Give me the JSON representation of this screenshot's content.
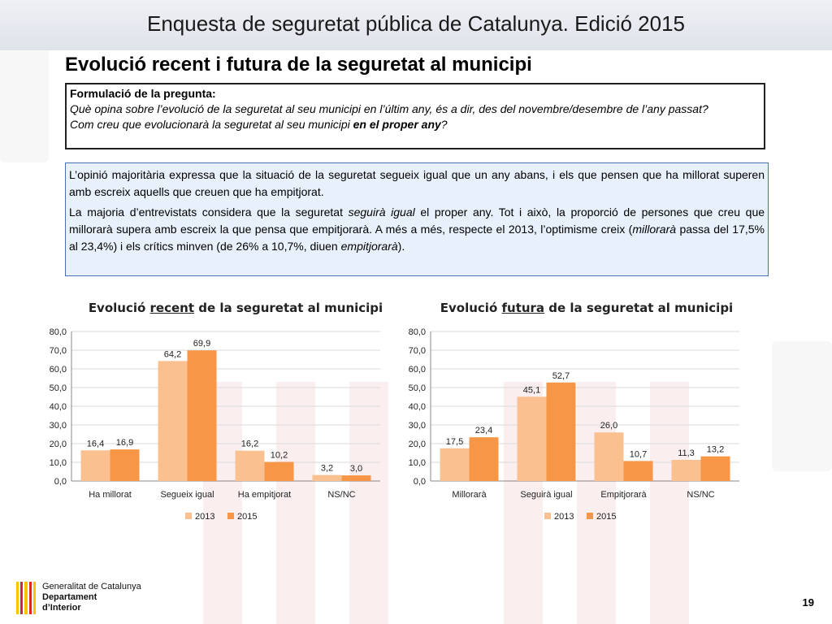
{
  "header": {
    "title": "Enquesta de seguretat pública de Catalunya. Edició 2015"
  },
  "slide": {
    "title": "Evolució recent i futura de la seguretat al municipi"
  },
  "question": {
    "label": "Formulació de la pregunta:",
    "line1": "Què opina sobre l’evolució de la seguretat al seu municipi en l’últim any, és a dir, des del novembre/desembre de l’any passat?",
    "line2_pre": "Com creu que evolucionarà la seguretat al seu municipi ",
    "line2_bold": "en el proper any",
    "line2_post": "?"
  },
  "summary": {
    "p1": "L’opinió majoritària expressa que la situació de la seguretat segueix igual que un any abans, i els que pensen que ha millorat superen amb escreix aquells que creuen que ha empitjorat.",
    "p2_a": "La majoria d’entrevistats considera que la seguretat ",
    "p2_b": "seguirà igual",
    "p2_c": " el proper any. Tot i això, la proporció de persones que creu que millorarà supera amb escreix la que pensa que empitjorarà. A més a més, respecte el 2013, l’optimisme creix  (",
    "p2_d": "millorarà",
    "p2_e": " passa del 17,5% al 23,4%) i els crítics minven (de 26% a 10,7%, diuen ",
    "p2_f": "empitjorarà",
    "p2_g": ")."
  },
  "charts": {
    "left_title_pre": "Evolució ",
    "left_title_u": "recent",
    "left_title_post": " de la seguretat al municipi",
    "right_title_pre": "Evolució ",
    "right_title_u": "futura",
    "right_title_post": " de la seguretat al municipi"
  },
  "chart_data": [
    {
      "type": "bar",
      "title": "Evolució recent de la seguretat al municipi",
      "categories": [
        "Ha millorat",
        "Segueix igual",
        "Ha empitjorat",
        "NS/NC"
      ],
      "series": [
        {
          "name": "2013",
          "values": [
            16.4,
            64.2,
            16.2,
            3.2
          ],
          "labels": [
            "16,4",
            "64,2",
            "16,2",
            "3,2"
          ],
          "color": "#fac090"
        },
        {
          "name": "2015",
          "values": [
            16.9,
            69.9,
            10.2,
            3.0
          ],
          "labels": [
            "16,9",
            "69,9",
            "10,2",
            "3,0"
          ],
          "color": "#f79646"
        }
      ],
      "yticks": [
        "0,0",
        "10,0",
        "20,0",
        "30,0",
        "40,0",
        "50,0",
        "60,0",
        "70,0",
        "80,0"
      ],
      "ylim": [
        0,
        80
      ],
      "legend": "bottom"
    },
    {
      "type": "bar",
      "title": "Evolució futura de la seguretat al municipi",
      "categories": [
        "Millorarà",
        "Seguirà igual",
        "Empitjorarà",
        "NS/NC"
      ],
      "series": [
        {
          "name": "2013",
          "values": [
            17.5,
            45.1,
            26.0,
            11.3
          ],
          "labels": [
            "17,5",
            "45,1",
            "26,0",
            "11,3"
          ],
          "color": "#fac090"
        },
        {
          "name": "2015",
          "values": [
            23.4,
            52.7,
            10.7,
            13.2
          ],
          "labels": [
            "23,4",
            "52,7",
            "10,7",
            "13,2"
          ],
          "color": "#f79646"
        }
      ],
      "yticks": [
        "0,0",
        "10,0",
        "20,0",
        "30,0",
        "40,0",
        "50,0",
        "60,0",
        "70,0",
        "80,0"
      ],
      "ylim": [
        0,
        80
      ],
      "legend": "bottom"
    }
  ],
  "footer": {
    "org_line1": "Generalitat de Catalunya",
    "org_line2": "Departament",
    "org_line3": "d’Interior",
    "page_number": "19"
  }
}
